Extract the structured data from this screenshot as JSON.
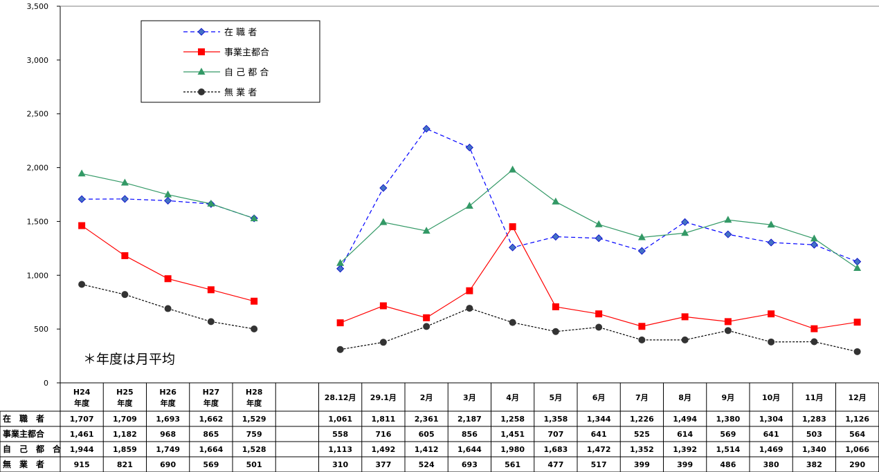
{
  "chart_data": {
    "type": "line",
    "categories": [
      {
        "line1": "H24",
        "line2": "年度"
      },
      {
        "line1": "H25",
        "line2": "年度"
      },
      {
        "line1": "H26",
        "line2": "年度"
      },
      {
        "line1": "H27",
        "line2": "年度"
      },
      {
        "line1": "H28",
        "line2": "年度"
      },
      {
        "line1": "",
        "line2": ""
      },
      {
        "line1": "28.12月",
        "line2": ""
      },
      {
        "line1": "29.1月",
        "line2": ""
      },
      {
        "line1": "2月",
        "line2": ""
      },
      {
        "line1": "3月",
        "line2": ""
      },
      {
        "line1": "4月",
        "line2": ""
      },
      {
        "line1": "5月",
        "line2": ""
      },
      {
        "line1": "6月",
        "line2": ""
      },
      {
        "line1": "7月",
        "line2": ""
      },
      {
        "line1": "8月",
        "line2": ""
      },
      {
        "line1": "9月",
        "line2": ""
      },
      {
        "line1": "10月",
        "line2": ""
      },
      {
        "line1": "11月",
        "line2": ""
      },
      {
        "line1": "12月",
        "line2": ""
      }
    ],
    "series": [
      {
        "name": "在 職 者",
        "table_label": "在　職　者",
        "color": "#0000ff",
        "dash": "dashed",
        "marker": "diamond",
        "marker_color": "#4472c4",
        "values": [
          1707,
          1709,
          1693,
          1662,
          1529,
          null,
          1061,
          1811,
          2361,
          2187,
          1258,
          1358,
          1344,
          1226,
          1494,
          1380,
          1304,
          1283,
          1126
        ],
        "labels": [
          "1,707",
          "1,709",
          "1,693",
          "1,662",
          "1,529",
          "",
          "1,061",
          "1,811",
          "2,361",
          "2,187",
          "1,258",
          "1,358",
          "1,344",
          "1,226",
          "1,494",
          "1,380",
          "1,304",
          "1,283",
          "1,126"
        ]
      },
      {
        "name": "事業主都合",
        "table_label": "事業主都合",
        "color": "#ff0000",
        "dash": "solid",
        "marker": "square",
        "marker_color": "#ff0000",
        "values": [
          1461,
          1182,
          968,
          865,
          759,
          null,
          558,
          716,
          605,
          856,
          1451,
          707,
          641,
          525,
          614,
          569,
          641,
          503,
          564
        ],
        "labels": [
          "1,461",
          "1,182",
          "968",
          "865",
          "759",
          "",
          "558",
          "716",
          "605",
          "856",
          "1,451",
          "707",
          "641",
          "525",
          "614",
          "569",
          "641",
          "503",
          "564"
        ]
      },
      {
        "name": "自 己 都 合",
        "table_label": "自　己　都　合",
        "color": "#339966",
        "dash": "solid",
        "marker": "triangle",
        "marker_color": "#339966",
        "values": [
          1944,
          1859,
          1749,
          1664,
          1528,
          null,
          1113,
          1492,
          1412,
          1644,
          1980,
          1683,
          1472,
          1352,
          1392,
          1514,
          1469,
          1340,
          1066
        ],
        "labels": [
          "1,944",
          "1,859",
          "1,749",
          "1,664",
          "1,528",
          "",
          "1,113",
          "1,492",
          "1,412",
          "1,644",
          "1,980",
          "1,683",
          "1,472",
          "1,352",
          "1,392",
          "1,514",
          "1,469",
          "1,340",
          "1,066"
        ]
      },
      {
        "name": "無 業 者",
        "table_label": "無　業　者",
        "color": "#000000",
        "dash": "dotted",
        "marker": "circle",
        "marker_color": "#333333",
        "values": [
          915,
          821,
          690,
          569,
          501,
          null,
          310,
          377,
          524,
          693,
          561,
          477,
          517,
          399,
          399,
          486,
          380,
          382,
          290
        ],
        "labels": [
          "915",
          "821",
          "690",
          "569",
          "501",
          "",
          "310",
          "377",
          "524",
          "693",
          "561",
          "477",
          "517",
          "399",
          "399",
          "486",
          "380",
          "382",
          "290"
        ]
      }
    ],
    "ylim": [
      0,
      3500
    ],
    "yticks": [
      "0",
      "500",
      "1,000",
      "1,500",
      "2,000",
      "2,500",
      "3,000",
      "3,500"
    ],
    "ytick_values": [
      0,
      500,
      1000,
      1500,
      2000,
      2500,
      3000,
      3500
    ],
    "grid": "top-border-only",
    "legend_position": "top-left",
    "annotation": "＊年度は月平均",
    "title": "",
    "xlabel": "",
    "ylabel": ""
  }
}
